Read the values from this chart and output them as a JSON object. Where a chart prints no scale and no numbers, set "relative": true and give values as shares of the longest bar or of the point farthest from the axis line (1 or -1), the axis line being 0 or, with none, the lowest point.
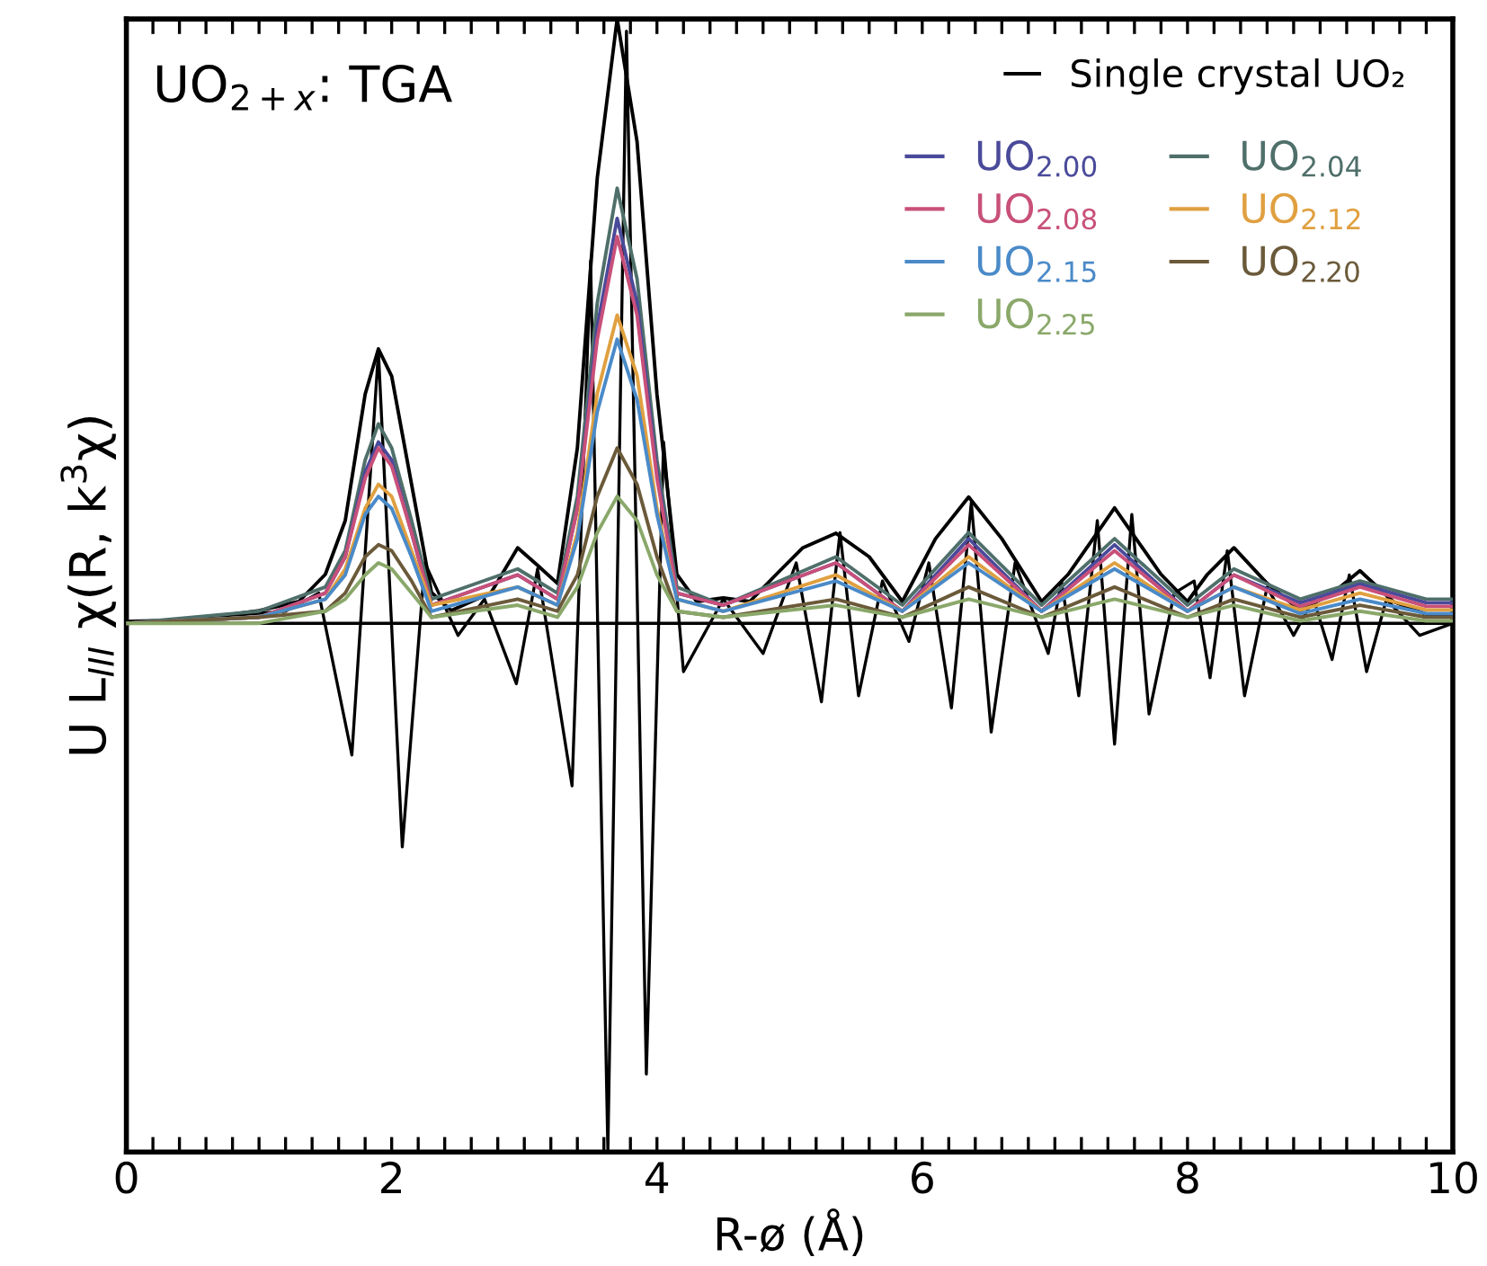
{
  "chart_data": {
    "type": "line",
    "relative": true,
    "xlabel": "R-ø (Å)",
    "ylabel": "U L$_{III}$ χ(R, k$^{3}$χ)",
    "annotations": [
      "UO$_{2+x}$: TGA"
    ],
    "xlim": [
      0,
      10
    ],
    "xticks": [
      0,
      {
        "value": 0.2,
        "label": null
      },
      {
        "value": 0.4,
        "label": null
      },
      {
        "value": 0.6,
        "label": null
      },
      {
        "value": 0.8,
        "label": null
      },
      {
        "value": 1,
        "label": null
      },
      {
        "value": 1.2,
        "label": null
      },
      {
        "value": 1.4,
        "label": null
      },
      {
        "value": 1.6,
        "label": null
      },
      {
        "value": 1.8,
        "label": null
      },
      2,
      {
        "value": 2.2,
        "label": null
      },
      {
        "value": 2.4,
        "label": null
      },
      {
        "value": 2.6,
        "label": null
      },
      {
        "value": 2.8,
        "label": null
      },
      {
        "value": 3,
        "label": null
      },
      {
        "value": 3.2,
        "label": null
      },
      {
        "value": 3.4,
        "label": null
      },
      {
        "value": 3.6,
        "label": null
      },
      {
        "value": 3.8,
        "label": null
      },
      4,
      {
        "value": 4.2,
        "label": null
      },
      {
        "value": 4.4,
        "label": null
      },
      {
        "value": 4.6,
        "label": null
      },
      {
        "value": 4.8,
        "label": null
      },
      {
        "value": 5,
        "label": null
      },
      {
        "value": 5.2,
        "label": null
      },
      {
        "value": 5.4,
        "label": null
      },
      {
        "value": 5.6,
        "label": null
      },
      {
        "value": 5.8,
        "label": null
      },
      6,
      {
        "value": 6.2,
        "label": null
      },
      {
        "value": 6.4,
        "label": null
      },
      {
        "value": 6.6,
        "label": null
      },
      {
        "value": 6.8,
        "label": null
      },
      {
        "value": 7,
        "label": null
      },
      {
        "value": 7.2,
        "label": null
      },
      {
        "value": 7.4,
        "label": null
      },
      {
        "value": 7.6,
        "label": null
      },
      {
        "value": 7.8,
        "label": null
      },
      8,
      {
        "value": 8.2,
        "label": null
      },
      {
        "value": 8.4,
        "label": null
      },
      {
        "value": 8.6,
        "label": null
      },
      {
        "value": 8.8,
        "label": null
      },
      {
        "value": 9,
        "label": null
      },
      {
        "value": 9.2,
        "label": null
      },
      {
        "value": 9.4,
        "label": null
      },
      {
        "value": 9.6,
        "label": null
      },
      {
        "value": 9.8,
        "label": null
      },
      10
    ],
    "legend": "top right",
    "grid": false,
    "marker": "none",
    "line_style": "solid",
    "series": [
      {
        "name": "Single crystal UO₂",
        "color": "#000000",
        "x": [
          0,
          0.5,
          1.0,
          1.3,
          1.5,
          1.65,
          1.8,
          1.9,
          2.0,
          2.15,
          2.3,
          2.45,
          2.6,
          2.75,
          2.95,
          3.1,
          3.25,
          3.4,
          3.55,
          3.7,
          3.85,
          4.0,
          4.15,
          4.3,
          4.5,
          4.7,
          4.9,
          5.1,
          5.35,
          5.6,
          5.85,
          6.1,
          6.35,
          6.6,
          6.9,
          7.1,
          7.45,
          7.8,
          8.0,
          8.15,
          8.35,
          8.6,
          8.85,
          9.1,
          9.3,
          9.55,
          9.8,
          10
        ],
        "values": [
          0.003,
          0.006,
          0.021,
          0.036,
          0.081,
          0.17,
          0.379,
          0.454,
          0.409,
          0.23,
          0.051,
          0.021,
          0.036,
          0.051,
          0.125,
          0.096,
          0.066,
          0.29,
          0.737,
          1.0,
          0.797,
          0.379,
          0.081,
          0.036,
          0.042,
          0.036,
          0.081,
          0.125,
          0.149,
          0.11,
          0.036,
          0.14,
          0.209,
          0.14,
          0.036,
          0.081,
          0.191,
          0.081,
          0.036,
          0.081,
          0.125,
          0.066,
          0.021,
          0.051,
          0.087,
          0.036,
          0.015,
          0.015
        ]
      },
      {
        "color": "#000000",
        "x": [
          0,
          1.2,
          1.45,
          1.7,
          1.9,
          2.08,
          2.25,
          2.5,
          2.7,
          2.94,
          3.1,
          3.36,
          3.5,
          3.63,
          3.77,
          3.92,
          4.05,
          4.2,
          4.5,
          4.8,
          5.05,
          5.24,
          5.38,
          5.52,
          5.7,
          5.9,
          6.05,
          6.22,
          6.37,
          6.52,
          6.7,
          6.95,
          7.05,
          7.18,
          7.32,
          7.45,
          7.58,
          7.71,
          7.9,
          8.05,
          8.17,
          8.3,
          8.43,
          8.6,
          8.8,
          8.95,
          9.09,
          9.22,
          9.35,
          9.5,
          9.75,
          10
        ],
        "values": [
          0,
          0.02,
          0.05,
          -0.218,
          0.45,
          -0.37,
          0.1,
          -0.02,
          0.04,
          -0.1,
          0.09,
          -0.269,
          0.6,
          -0.875,
          0.98,
          -0.746,
          0.3,
          -0.08,
          0.04,
          -0.05,
          0.1,
          -0.13,
          0.15,
          -0.12,
          0.07,
          -0.03,
          0.1,
          -0.14,
          0.2,
          -0.18,
          0.1,
          -0.05,
          0.07,
          -0.12,
          0.17,
          -0.2,
          0.18,
          -0.15,
          0.05,
          0.07,
          -0.09,
          0.12,
          -0.12,
          0.06,
          -0.02,
          0.04,
          -0.06,
          0.08,
          -0.08,
          0.04,
          -0.02,
          0
        ]
      },
      {
        "name": "UO$_{2.00}$",
        "color": "#4a4a9a",
        "x": [
          0,
          1.0,
          1.5,
          1.65,
          1.8,
          1.9,
          2.0,
          2.15,
          2.3,
          2.95,
          3.25,
          3.4,
          3.55,
          3.7,
          3.85,
          4.0,
          4.15,
          4.5,
          5.35,
          5.85,
          6.35,
          6.9,
          7.45,
          8.0,
          8.35,
          8.85,
          9.3,
          9.8,
          10
        ],
        "values": [
          0.0,
          0.01,
          0.05,
          0.11,
          0.25,
          0.3,
          0.27,
          0.15,
          0.03,
          0.08,
          0.04,
          0.19,
          0.49,
          0.67,
          0.53,
          0.25,
          0.05,
          0.03,
          0.1,
          0.02,
          0.14,
          0.02,
          0.13,
          0.02,
          0.08,
          0.034,
          0.065,
          0.034,
          0.034
        ]
      },
      {
        "name": "UO$_{2.08}$",
        "color": "#c8507a",
        "x": [
          0,
          1.0,
          1.5,
          1.65,
          1.8,
          1.9,
          2.0,
          2.15,
          2.3,
          2.95,
          3.25,
          3.4,
          3.55,
          3.7,
          3.85,
          4.0,
          4.15,
          4.5,
          5.35,
          5.85,
          6.35,
          6.9,
          7.45,
          8.0,
          8.35,
          8.85,
          9.3,
          9.8,
          10
        ],
        "values": [
          0.0,
          0.01,
          0.05,
          0.11,
          0.24,
          0.29,
          0.26,
          0.15,
          0.03,
          0.08,
          0.04,
          0.19,
          0.47,
          0.64,
          0.51,
          0.24,
          0.05,
          0.03,
          0.1,
          0.02,
          0.13,
          0.02,
          0.12,
          0.02,
          0.08,
          0.028,
          0.06,
          0.028,
          0.028
        ]
      },
      {
        "name": "UO$_{2.15}$",
        "color": "#4a8ac8",
        "x": [
          0,
          1.0,
          1.5,
          1.65,
          1.8,
          1.9,
          2.0,
          2.15,
          2.3,
          2.95,
          3.25,
          3.4,
          3.55,
          3.7,
          3.85,
          4.0,
          4.15,
          4.5,
          5.35,
          5.85,
          6.35,
          6.9,
          7.45,
          8.0,
          8.35,
          8.85,
          9.3,
          9.8,
          10
        ],
        "values": [
          0.0,
          0.01,
          0.04,
          0.08,
          0.18,
          0.21,
          0.19,
          0.11,
          0.02,
          0.06,
          0.03,
          0.14,
          0.35,
          0.47,
          0.37,
          0.18,
          0.04,
          0.02,
          0.07,
          0.02,
          0.1,
          0.02,
          0.09,
          0.02,
          0.06,
          0.016,
          0.04,
          0.016,
          0.016
        ]
      },
      {
        "name": "UO$_{2.25}$",
        "color": "#8aa86a",
        "x": [
          0,
          1.0,
          1.5,
          1.65,
          1.8,
          1.9,
          2.0,
          2.15,
          2.3,
          2.95,
          3.25,
          3.4,
          3.55,
          3.7,
          3.85,
          4.0,
          4.15,
          4.5,
          5.35,
          5.85,
          6.35,
          6.9,
          7.45,
          8.0,
          8.35,
          8.85,
          9.3,
          9.8,
          10
        ],
        "values": [
          0.0,
          0.0,
          0.02,
          0.04,
          0.08,
          0.1,
          0.09,
          0.05,
          0.01,
          0.03,
          0.01,
          0.06,
          0.15,
          0.21,
          0.17,
          0.08,
          0.02,
          0.01,
          0.03,
          0.01,
          0.04,
          0.01,
          0.04,
          0.01,
          0.03,
          0.004,
          0.02,
          0.004,
          0.004
        ]
      },
      {
        "name": "UO$_{2.04}$",
        "color": "#4f6f6a",
        "x": [
          0,
          1.0,
          1.5,
          1.65,
          1.8,
          1.9,
          2.0,
          2.15,
          2.3,
          2.95,
          3.25,
          3.4,
          3.55,
          3.7,
          3.85,
          4.0,
          4.15,
          4.5,
          5.35,
          5.85,
          6.35,
          6.9,
          7.45,
          8.0,
          8.35,
          8.85,
          9.3,
          9.8,
          10
        ],
        "values": [
          0.0,
          0.02,
          0.06,
          0.12,
          0.27,
          0.33,
          0.29,
          0.17,
          0.04,
          0.09,
          0.05,
          0.21,
          0.53,
          0.72,
          0.57,
          0.27,
          0.06,
          0.03,
          0.11,
          0.03,
          0.15,
          0.03,
          0.14,
          0.03,
          0.09,
          0.04,
          0.07,
          0.04,
          0.04
        ]
      },
      {
        "name": "UO$_{2.12}$",
        "color": "#e0a040",
        "x": [
          0,
          1.0,
          1.5,
          1.65,
          1.8,
          1.9,
          2.0,
          2.15,
          2.3,
          2.95,
          3.25,
          3.4,
          3.55,
          3.7,
          3.85,
          4.0,
          4.15,
          4.5,
          5.35,
          5.85,
          6.35,
          6.9,
          7.45,
          8.0,
          8.35,
          8.85,
          9.3,
          9.8,
          10
        ],
        "values": [
          0.0,
          0.01,
          0.04,
          0.09,
          0.19,
          0.23,
          0.21,
          0.12,
          0.03,
          0.06,
          0.03,
          0.15,
          0.38,
          0.51,
          0.41,
          0.19,
          0.04,
          0.02,
          0.08,
          0.02,
          0.11,
          0.02,
          0.1,
          0.02,
          0.06,
          0.022,
          0.05,
          0.022,
          0.022
        ]
      },
      {
        "name": "UO$_{2.20}$",
        "color": "#6b5a3a",
        "x": [
          0,
          1.0,
          1.5,
          1.65,
          1.8,
          1.9,
          2.0,
          2.15,
          2.3,
          2.95,
          3.25,
          3.4,
          3.55,
          3.7,
          3.85,
          4.0,
          4.15,
          4.5,
          5.35,
          5.85,
          6.35,
          6.9,
          7.45,
          8.0,
          8.35,
          8.85,
          9.3,
          9.8,
          10
        ],
        "values": [
          0.0,
          0.01,
          0.02,
          0.05,
          0.11,
          0.13,
          0.12,
          0.07,
          0.01,
          0.04,
          0.02,
          0.08,
          0.21,
          0.29,
          0.23,
          0.11,
          0.02,
          0.01,
          0.04,
          0.01,
          0.06,
          0.01,
          0.06,
          0.01,
          0.04,
          0.01,
          0.03,
          0.01,
          0.01
        ]
      }
    ]
  }
}
